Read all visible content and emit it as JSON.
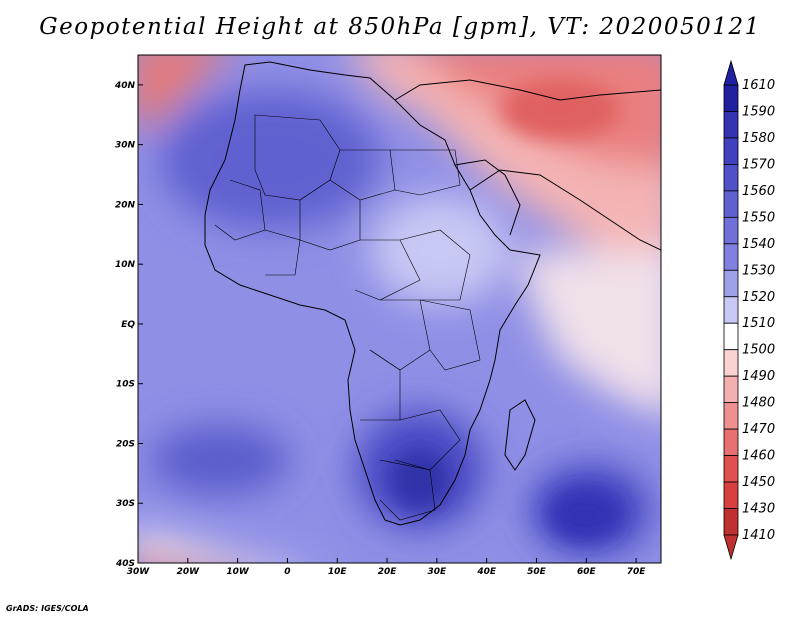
{
  "title": "Geopotential Height at 850hPa [gpm], VT: 2020050121",
  "credit": "GrADS: IGES/COLA",
  "chart_data": {
    "type": "heatmap",
    "variable": "Geopotential Height",
    "level": "850hPa",
    "units": "gpm",
    "valid_time": "2020050121",
    "lon_range": [
      -30,
      75
    ],
    "lat_range": [
      -40,
      45
    ],
    "x_tick_labels": [
      "30W",
      "20W",
      "10W",
      "0",
      "10E",
      "20E",
      "30E",
      "40E",
      "50E",
      "60E",
      "70E"
    ],
    "x_tick_values": [
      -30,
      -20,
      -10,
      0,
      10,
      20,
      30,
      40,
      50,
      60,
      70
    ],
    "y_tick_labels": [
      "40N",
      "30N",
      "20N",
      "10N",
      "EQ",
      "10S",
      "20S",
      "30S",
      "40S"
    ],
    "y_tick_values": [
      40,
      30,
      20,
      10,
      0,
      -10,
      -20,
      -30,
      -40
    ],
    "colorbar": {
      "levels": [
        "1610",
        "1590",
        "1580",
        "1570",
        "1560",
        "1550",
        "1540",
        "1530",
        "1520",
        "1510",
        "1500",
        "1490",
        "1480",
        "1470",
        "1460",
        "1450",
        "1430",
        "1410"
      ],
      "colors": [
        "#2020a0",
        "#3333b3",
        "#4040c0",
        "#5050c8",
        "#6060d0",
        "#7070d8",
        "#8080e0",
        "#a0a0e8",
        "#c8c8f4",
        "#ffffff",
        "#fad2d2",
        "#f4b0b0",
        "#ee9090",
        "#e87070",
        "#e05050",
        "#d84040",
        "#c03030"
      ]
    }
  }
}
